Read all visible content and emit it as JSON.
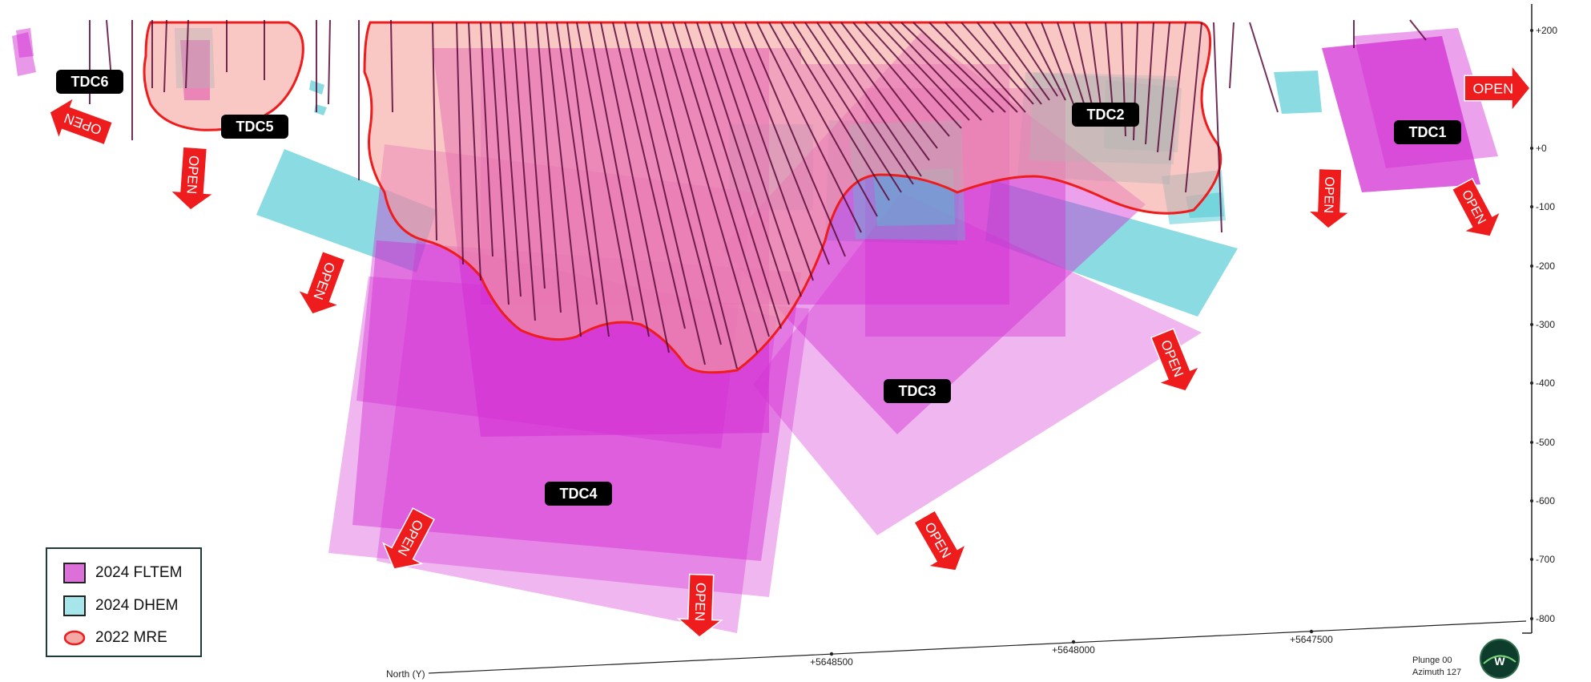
{
  "targets": [
    {
      "id": "tdc6",
      "label": "TDC6"
    },
    {
      "id": "tdc5",
      "label": "TDC5"
    },
    {
      "id": "tdc2",
      "label": "TDC2"
    },
    {
      "id": "tdc1",
      "label": "TDC1"
    },
    {
      "id": "tdc3",
      "label": "TDC3"
    },
    {
      "id": "tdc4",
      "label": "TDC4"
    }
  ],
  "open_label": "OPEN",
  "legend": {
    "items": [
      {
        "label": "2024 FLTEM",
        "color": "#dd6fd9"
      },
      {
        "label": "2024 DHEM",
        "color": "#a6e6ea"
      },
      {
        "label": "2022 MRE",
        "color": "#f4a9a5"
      }
    ]
  },
  "depth_axis": {
    "ticks": [
      "+200",
      "+0",
      "-100",
      "-200",
      "-300",
      "-400",
      "-500",
      "-600",
      "-700",
      "-800"
    ]
  },
  "northing_axis": {
    "label": "North (Y)",
    "ticks": [
      "+5648500",
      "+5648000",
      "+5647500"
    ]
  },
  "view": {
    "plunge": "Plunge 00",
    "azimuth": "Azimuth 127"
  },
  "colors": {
    "fltem": "#cc22cc",
    "dhem": "#4cc9d3",
    "mre_fill": "#f6a9a4",
    "mre_outline": "#ee1c1c",
    "drillhole": "#5a0a3a",
    "arrow": "#ee1c1c",
    "label_bg": "#000000"
  }
}
